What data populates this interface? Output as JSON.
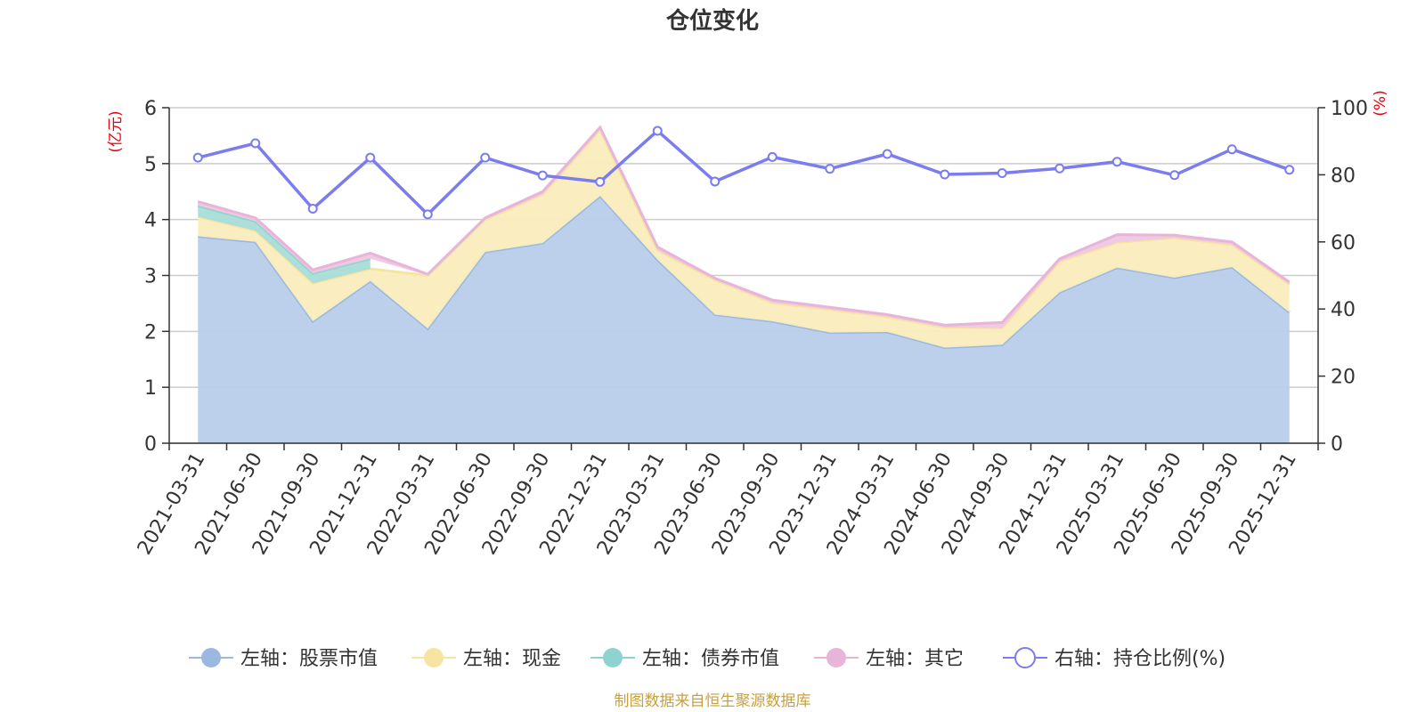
{
  "chart_data": {
    "type": "area",
    "title": "仓位变化",
    "left_axis_unit": "(亿元)",
    "right_axis_unit": "(%)",
    "left_ylim": [
      0,
      6
    ],
    "left_ticks": [
      "0",
      "1",
      "2",
      "3",
      "4",
      "5",
      "6"
    ],
    "right_ylim": [
      0,
      100
    ],
    "right_ticks": [
      "0",
      "20",
      "40",
      "60",
      "80",
      "100"
    ],
    "categories": [
      "2021-03-31",
      "2021-06-30",
      "2021-09-30",
      "2021-12-31",
      "2022-03-31",
      "2022-06-30",
      "2022-09-30",
      "2022-12-31",
      "2023-03-31",
      "2023-06-30",
      "2023-09-30",
      "2023-12-31",
      "2024-03-31",
      "2024-06-30",
      "2024-09-30",
      "2024-12-31",
      "2025-03-31",
      "2025-06-30",
      "2025-09-30",
      "2025-12-31"
    ],
    "series": [
      {
        "name": "左轴：股票市值",
        "axis": "left",
        "stack": true,
        "color": "#9bb8e0",
        "fill": "#b8cdea",
        "values": [
          3.7,
          3.6,
          2.18,
          2.9,
          2.05,
          3.42,
          3.58,
          4.42,
          3.28,
          2.3,
          2.18,
          1.98,
          1.99,
          1.71,
          1.76,
          2.7,
          3.14,
          2.96,
          3.15,
          2.34
        ]
      },
      {
        "name": "左轴：现金",
        "axis": "left",
        "stack": true,
        "color": "#f7e4a0",
        "fill": "#faedbe",
        "values": [
          0.35,
          0.2,
          0.68,
          0.22,
          0.95,
          0.58,
          0.87,
          1.18,
          0.17,
          0.62,
          0.33,
          0.41,
          0.27,
          0.36,
          0.3,
          0.55,
          0.45,
          0.71,
          0.4,
          0.5
        ]
      },
      {
        "name": "左轴：债券市值",
        "axis": "left",
        "stack": true,
        "color": "#8fd3d0",
        "fill": "#a8dcd8",
        "values": [
          0.2,
          0.17,
          0.18,
          0.18,
          0,
          0,
          0,
          0,
          0,
          0,
          0,
          0,
          0,
          0,
          0,
          0,
          0,
          0,
          0,
          0
        ]
      },
      {
        "name": "左轴：其它",
        "axis": "left",
        "stack": true,
        "color": "#e8b4d8",
        "fill": "#eec7e2",
        "values": [
          0.07,
          0.06,
          0.06,
          0.1,
          0.02,
          0.03,
          0.05,
          0.05,
          0.06,
          0.03,
          0.05,
          0.04,
          0.04,
          0.04,
          0.1,
          0.05,
          0.14,
          0.05,
          0.05,
          0.04
        ]
      },
      {
        "name": "右轴：持仓比例(%)",
        "axis": "right",
        "stack": false,
        "color": "#7b7cf0",
        "fill": "none",
        "values": [
          85.1,
          89.4,
          69.9,
          85.1,
          68.2,
          85.1,
          79.8,
          77.9,
          93.1,
          78.0,
          85.3,
          81.8,
          86.2,
          80.1,
          80.5,
          81.9,
          83.9,
          79.9,
          87.6,
          81.5
        ]
      }
    ]
  },
  "source": {
    "text": "制图数据来自恒生聚源数据库",
    "color": "#c8a040"
  }
}
